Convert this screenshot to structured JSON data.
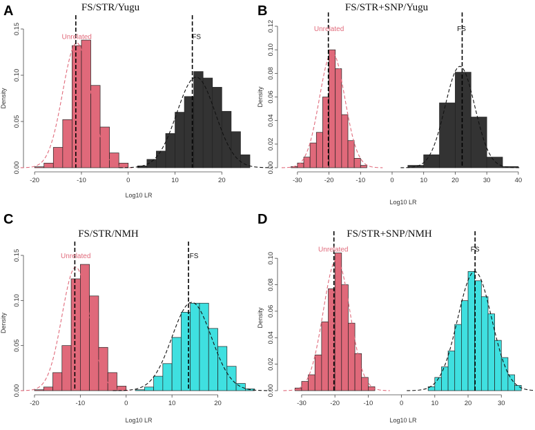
{
  "colors": {
    "unrelated_fill": "#E0697A",
    "fs_fill_yugu": "#333333",
    "fs_fill_nmh": "#3FE0E0",
    "unrelated_text": "#E0697A",
    "bar_edge": "#222222",
    "curve_unrelated": "#E0697A",
    "curve_fs": "#111111"
  },
  "chart_data": [
    {
      "type": "bar",
      "panel_label": "A",
      "title": "FS/STR/Yugu",
      "xlabel": "Log10 LR",
      "ylabel": "Density",
      "xlim": [
        -21.5,
        26
      ],
      "ylim": [
        0,
        0.15
      ],
      "xticks": [
        -20,
        -10,
        0,
        10,
        20
      ],
      "yticks": [
        0.0,
        0.05,
        0.1,
        0.15
      ],
      "ytick_labels": [
        "0.00",
        "0.05",
        "0.10",
        "0.15"
      ],
      "series": [
        {
          "name": "Unrelated",
          "fill": "unrelated_fill",
          "bin_width": 2,
          "bins": [
            {
              "x0": -20,
              "v": 0.001
            },
            {
              "x0": -18,
              "v": 0.005
            },
            {
              "x0": -16,
              "v": 0.022
            },
            {
              "x0": -14,
              "v": 0.052
            },
            {
              "x0": -12,
              "v": 0.132
            },
            {
              "x0": -10,
              "v": 0.138
            },
            {
              "x0": -8,
              "v": 0.089
            },
            {
              "x0": -6,
              "v": 0.044
            },
            {
              "x0": -4,
              "v": 0.016
            },
            {
              "x0": -2,
              "v": 0.005
            }
          ],
          "fit_mean": -11,
          "fit_sd": 3,
          "fit_peak": 0.135,
          "vline": -11.2
        },
        {
          "name": "FS",
          "fill": "fs_fill_yugu",
          "bin_width": 2,
          "bins": [
            {
              "x0": 2,
              "v": 0.002
            },
            {
              "x0": 4,
              "v": 0.009
            },
            {
              "x0": 6,
              "v": 0.018
            },
            {
              "x0": 8,
              "v": 0.037
            },
            {
              "x0": 10,
              "v": 0.06
            },
            {
              "x0": 12,
              "v": 0.077
            },
            {
              "x0": 14,
              "v": 0.104
            },
            {
              "x0": 16,
              "v": 0.097
            },
            {
              "x0": 18,
              "v": 0.087
            },
            {
              "x0": 20,
              "v": 0.061
            },
            {
              "x0": 22,
              "v": 0.039
            },
            {
              "x0": 24,
              "v": 0.014
            }
          ],
          "fit_mean": 14.5,
          "fit_sd": 4.1,
          "fit_peak": 0.098,
          "vline": 13.7
        }
      ],
      "annotations": [
        {
          "text": "Unrelated",
          "x": -11,
          "y": 0.139,
          "color": "unrelated_text"
        },
        {
          "text": "FS",
          "x": 14.6,
          "y": 0.139,
          "color": "curve_fs"
        }
      ]
    },
    {
      "type": "bar",
      "panel_label": "B",
      "title": "FS/STR+SNP/Yugu",
      "xlabel": "Log10 LR",
      "ylabel": "Density",
      "xlim": [
        -35,
        42
      ],
      "ylim": [
        0,
        0.12
      ],
      "xticks": [
        -30,
        -20,
        -10,
        0,
        10,
        20,
        30,
        40
      ],
      "yticks": [
        0.0,
        0.02,
        0.04,
        0.06,
        0.08,
        0.1,
        0.12
      ],
      "ytick_labels": [
        "0.00",
        "0.02",
        "0.04",
        "0.06",
        "0.08",
        "0.10",
        "0.12"
      ],
      "series": [
        {
          "name": "Unrelated",
          "fill": "unrelated_fill",
          "bin_width": 2,
          "bins": [
            {
              "x0": -32,
              "v": 0.001
            },
            {
              "x0": -30,
              "v": 0.004
            },
            {
              "x0": -28,
              "v": 0.009
            },
            {
              "x0": -26,
              "v": 0.021
            },
            {
              "x0": -24,
              "v": 0.03
            },
            {
              "x0": -22,
              "v": 0.06
            },
            {
              "x0": -20,
              "v": 0.1
            },
            {
              "x0": -18,
              "v": 0.084
            },
            {
              "x0": -16,
              "v": 0.045
            },
            {
              "x0": -14,
              "v": 0.023
            },
            {
              "x0": -12,
              "v": 0.008
            },
            {
              "x0": -10,
              "v": 0.002
            }
          ],
          "fit_mean": -19,
          "fit_sd": 4,
          "fit_peak": 0.098,
          "vline": -20.2
        },
        {
          "name": "FS",
          "fill": "fs_fill_yugu",
          "bin_width": 5,
          "bins": [
            {
              "x0": 5,
              "v": 0.002
            },
            {
              "x0": 10,
              "v": 0.011
            },
            {
              "x0": 15,
              "v": 0.055
            },
            {
              "x0": 20,
              "v": 0.081
            },
            {
              "x0": 25,
              "v": 0.043
            },
            {
              "x0": 30,
              "v": 0.009
            },
            {
              "x0": 35,
              "v": 0.001
            }
          ],
          "fit_mean": 21.5,
          "fit_sd": 4.7,
          "fit_peak": 0.086,
          "vline": 22.2
        }
      ],
      "annotations": [
        {
          "text": "Unrelated",
          "x": -20,
          "y": 0.116,
          "color": "unrelated_text"
        },
        {
          "text": "FS",
          "x": 22,
          "y": 0.116,
          "color": "curve_fs"
        }
      ]
    },
    {
      "type": "bar",
      "panel_label": "C",
      "title": "FS/STR/NMH",
      "xlabel": "Log10 LR",
      "ylabel": "Density",
      "xlim": [
        -21.5,
        27
      ],
      "ylim": [
        0,
        0.15
      ],
      "xticks": [
        -20,
        -10,
        0,
        10,
        20
      ],
      "yticks": [
        0.0,
        0.05,
        0.1,
        0.15
      ],
      "ytick_labels": [
        "0.00",
        "0.05",
        "0.10",
        "0.15"
      ],
      "series": [
        {
          "name": "Unrelated",
          "fill": "unrelated_fill",
          "bin_width": 2,
          "bins": [
            {
              "x0": -20,
              "v": 0.001
            },
            {
              "x0": -18,
              "v": 0.004
            },
            {
              "x0": -16,
              "v": 0.02
            },
            {
              "x0": -14,
              "v": 0.05
            },
            {
              "x0": -12,
              "v": 0.124
            },
            {
              "x0": -10,
              "v": 0.14
            },
            {
              "x0": -8,
              "v": 0.105
            },
            {
              "x0": -6,
              "v": 0.048
            },
            {
              "x0": -4,
              "v": 0.02
            },
            {
              "x0": -2,
              "v": 0.005
            }
          ],
          "fit_mean": -11,
          "fit_sd": 3,
          "fit_peak": 0.137,
          "vline": -11.2
        },
        {
          "name": "FS",
          "fill": "fs_fill_nmh",
          "bin_width": 2,
          "bins": [
            {
              "x0": 2,
              "v": 0.001
            },
            {
              "x0": 4,
              "v": 0.004
            },
            {
              "x0": 6,
              "v": 0.016
            },
            {
              "x0": 8,
              "v": 0.03
            },
            {
              "x0": 10,
              "v": 0.059
            },
            {
              "x0": 12,
              "v": 0.087
            },
            {
              "x0": 14,
              "v": 0.097
            },
            {
              "x0": 16,
              "v": 0.097
            },
            {
              "x0": 18,
              "v": 0.069
            },
            {
              "x0": 20,
              "v": 0.049
            },
            {
              "x0": 22,
              "v": 0.027
            },
            {
              "x0": 24,
              "v": 0.008
            },
            {
              "x0": 26,
              "v": 0.002
            }
          ],
          "fit_mean": 14.3,
          "fit_sd": 4.3,
          "fit_peak": 0.098,
          "vline": 13.6
        }
      ],
      "annotations": [
        {
          "text": "Unrelated",
          "x": -11,
          "y": 0.147,
          "color": "unrelated_text"
        },
        {
          "text": "FS",
          "x": 14.8,
          "y": 0.147,
          "color": "curve_fs"
        }
      ]
    },
    {
      "type": "bar",
      "panel_label": "D",
      "title": "FS/STR+SNP/NMH",
      "xlabel": "Log10 LR",
      "ylabel": "Density",
      "xlim": [
        -36,
        37
      ],
      "ylim": [
        0,
        0.11
      ],
      "xticks": [
        -30,
        -20,
        -10,
        0,
        10,
        20,
        30
      ],
      "yticks": [
        0.0,
        0.02,
        0.04,
        0.06,
        0.08,
        0.1
      ],
      "ytick_labels": [
        "0.00",
        "0.02",
        "0.04",
        "0.06",
        "0.08",
        "0.10"
      ],
      "series": [
        {
          "name": "Unrelated",
          "fill": "unrelated_fill",
          "bin_width": 2,
          "bins": [
            {
              "x0": -32,
              "v": 0.002
            },
            {
              "x0": -30,
              "v": 0.007
            },
            {
              "x0": -28,
              "v": 0.012
            },
            {
              "x0": -26,
              "v": 0.027
            },
            {
              "x0": -24,
              "v": 0.052
            },
            {
              "x0": -22,
              "v": 0.077
            },
            {
              "x0": -20,
              "v": 0.104
            },
            {
              "x0": -18,
              "v": 0.08
            },
            {
              "x0": -16,
              "v": 0.051
            },
            {
              "x0": -14,
              "v": 0.028
            },
            {
              "x0": -12,
              "v": 0.01
            },
            {
              "x0": -10,
              "v": 0.003
            }
          ],
          "fit_mean": -19.5,
          "fit_sd": 4,
          "fit_peak": 0.099,
          "vline": -20.3
        },
        {
          "name": "FS",
          "fill": "fs_fill_nmh",
          "bin_width": 2,
          "bins": [
            {
              "x0": 8,
              "v": 0.003
            },
            {
              "x0": 10,
              "v": 0.01
            },
            {
              "x0": 12,
              "v": 0.018
            },
            {
              "x0": 14,
              "v": 0.03
            },
            {
              "x0": 16,
              "v": 0.05
            },
            {
              "x0": 18,
              "v": 0.068
            },
            {
              "x0": 20,
              "v": 0.09
            },
            {
              "x0": 22,
              "v": 0.083
            },
            {
              "x0": 24,
              "v": 0.071
            },
            {
              "x0": 26,
              "v": 0.058
            },
            {
              "x0": 28,
              "v": 0.038
            },
            {
              "x0": 30,
              "v": 0.025
            },
            {
              "x0": 32,
              "v": 0.012
            },
            {
              "x0": 34,
              "v": 0.004
            }
          ],
          "fit_mean": 22,
          "fit_sd": 5.1,
          "fit_peak": 0.09,
          "vline": 22.1
        }
      ],
      "annotations": [
        {
          "text": "Unrelated",
          "x": -20.5,
          "y": 0.105,
          "color": "unrelated_text"
        },
        {
          "text": "FS",
          "x": 22.1,
          "y": 0.105,
          "color": "curve_fs"
        }
      ]
    }
  ]
}
